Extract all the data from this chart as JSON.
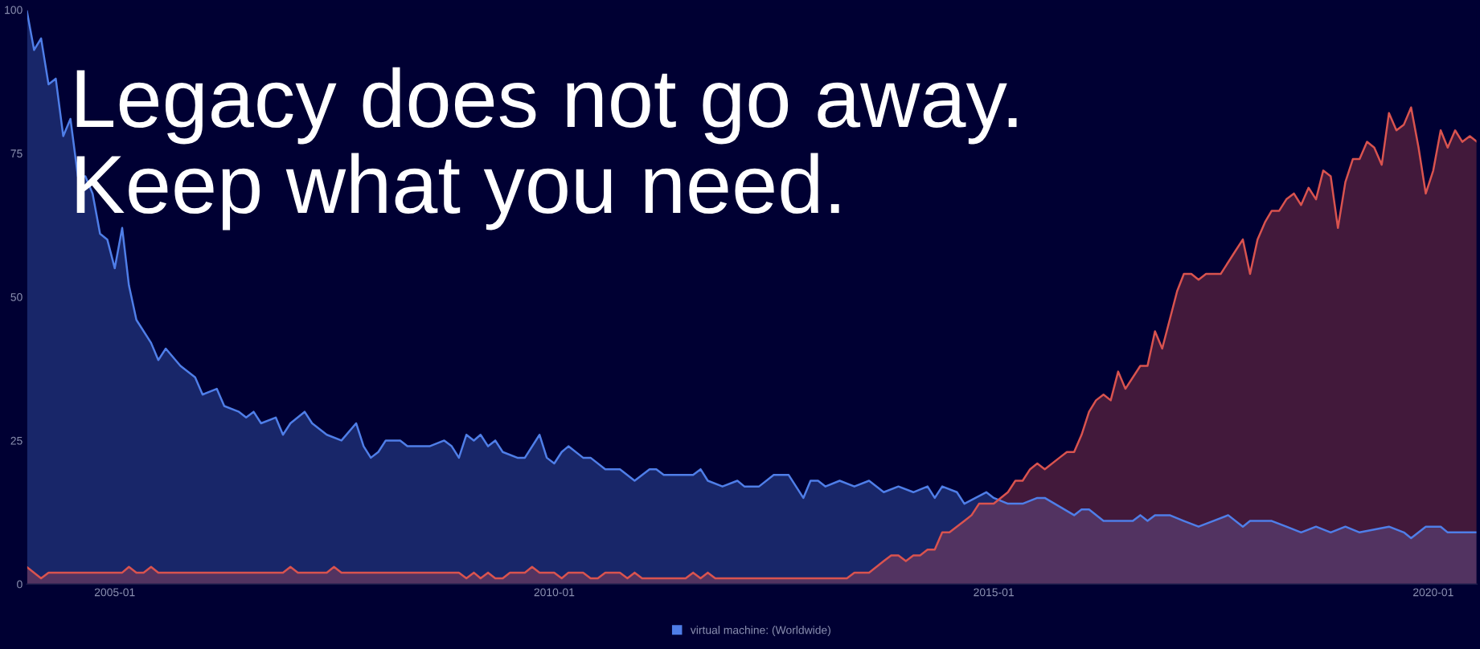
{
  "chart_data": {
    "type": "area",
    "title": "Legacy does not go away.\nKeep what you need.",
    "xlim": [
      "2004-01",
      "2020-07"
    ],
    "xticks": [
      "2005-01",
      "2010-01",
      "2015-01",
      "2020-01"
    ],
    "ylim": [
      0,
      100
    ],
    "yticks": [
      0,
      25,
      50,
      75,
      100
    ],
    "grid": false,
    "legend": "bottom",
    "series": [
      {
        "name": "virtual machine: (Worldwide)",
        "color": "#4f7ee8",
        "x": [
          "2004-01",
          "2004-02",
          "2004-03",
          "2004-04",
          "2004-05",
          "2004-06",
          "2004-07",
          "2004-08",
          "2004-09",
          "2004-10",
          "2004-11",
          "2004-12",
          "2005-01",
          "2005-02",
          "2005-03",
          "2005-04",
          "2005-06",
          "2005-07",
          "2005-08",
          "2005-10",
          "2005-12",
          "2006-01",
          "2006-03",
          "2006-04",
          "2006-06",
          "2006-07",
          "2006-08",
          "2006-09",
          "2006-11",
          "2006-12",
          "2007-01",
          "2007-03",
          "2007-04",
          "2007-06",
          "2007-08",
          "2007-10",
          "2007-11",
          "2007-12",
          "2008-01",
          "2008-02",
          "2008-04",
          "2008-05",
          "2008-08",
          "2008-10",
          "2008-11",
          "2008-12",
          "2009-01",
          "2009-02",
          "2009-03",
          "2009-04",
          "2009-05",
          "2009-06",
          "2009-08",
          "2009-09",
          "2009-11",
          "2009-12",
          "2010-01",
          "2010-02",
          "2010-03",
          "2010-05",
          "2010-06",
          "2010-08",
          "2010-10",
          "2010-12",
          "2011-02",
          "2011-03",
          "2011-04",
          "2011-08",
          "2011-09",
          "2011-10",
          "2011-12",
          "2012-02",
          "2012-03",
          "2012-05",
          "2012-07",
          "2012-09",
          "2012-11",
          "2012-12",
          "2013-01",
          "2013-02",
          "2013-04",
          "2013-06",
          "2013-08",
          "2013-10",
          "2013-12",
          "2014-02",
          "2014-04",
          "2014-05",
          "2014-06",
          "2014-08",
          "2014-09",
          "2014-12",
          "2015-01",
          "2015-03",
          "2015-05",
          "2015-07",
          "2015-08",
          "2015-12",
          "2016-01",
          "2016-02",
          "2016-04",
          "2016-08",
          "2016-09",
          "2016-10",
          "2016-11",
          "2017-01",
          "2017-03",
          "2017-05",
          "2017-07",
          "2017-09",
          "2017-11",
          "2017-12",
          "2018-03",
          "2018-05",
          "2018-07",
          "2018-09",
          "2018-11",
          "2019-01",
          "2019-03",
          "2019-07",
          "2019-09",
          "2019-10",
          "2019-12",
          "2020-02",
          "2020-03",
          "2020-07"
        ],
        "values": [
          100,
          93,
          95,
          87,
          88,
          78,
          81,
          71,
          71,
          68,
          61,
          60,
          55,
          62,
          52,
          46,
          42,
          39,
          41,
          38,
          36,
          33,
          34,
          31,
          30,
          29,
          30,
          28,
          29,
          26,
          28,
          30,
          28,
          26,
          25,
          28,
          24,
          22,
          23,
          25,
          25,
          24,
          24,
          25,
          24,
          22,
          26,
          25,
          26,
          24,
          25,
          23,
          22,
          22,
          26,
          22,
          21,
          23,
          24,
          22,
          22,
          20,
          20,
          18,
          20,
          20,
          19,
          19,
          20,
          18,
          17,
          18,
          17,
          17,
          19,
          19,
          15,
          18,
          18,
          17,
          18,
          17,
          18,
          16,
          17,
          16,
          17,
          15,
          17,
          16,
          14,
          16,
          15,
          14,
          14,
          15,
          15,
          12,
          13,
          13,
          11,
          11,
          12,
          11,
          12,
          12,
          11,
          10,
          11,
          12,
          10,
          11,
          11,
          10,
          9,
          10,
          9,
          10,
          9,
          10,
          9,
          8,
          10,
          10,
          9,
          9
        ]
      },
      {
        "color": "#d9534f",
        "x": [
          "2004-01",
          "2004-03",
          "2004-04",
          "2005-02",
          "2005-03",
          "2005-04",
          "2005-05",
          "2005-06",
          "2005-07",
          "2006-12",
          "2007-01",
          "2007-02",
          "2007-06",
          "2007-07",
          "2007-08",
          "2008-12",
          "2009-01",
          "2009-02",
          "2009-03",
          "2009-04",
          "2009-05",
          "2009-06",
          "2009-07",
          "2009-09",
          "2009-10",
          "2009-11",
          "2010-01",
          "2010-02",
          "2010-03",
          "2010-05",
          "2010-06",
          "2010-07",
          "2010-08",
          "2010-10",
          "2010-11",
          "2010-12",
          "2011-01",
          "2011-07",
          "2011-08",
          "2011-09",
          "2011-10",
          "2011-11",
          "2013-05",
          "2013-06",
          "2013-08",
          "2013-10",
          "2013-11",
          "2013-12",
          "2014-01",
          "2014-02",
          "2014-03",
          "2014-04",
          "2014-05",
          "2014-06",
          "2014-07",
          "2014-09",
          "2014-10",
          "2014-11",
          "2014-12",
          "2015-01",
          "2015-03",
          "2015-04",
          "2015-05",
          "2015-06",
          "2015-07",
          "2015-08",
          "2015-10",
          "2015-11",
          "2015-12",
          "2016-01",
          "2016-02",
          "2016-03",
          "2016-04",
          "2016-05",
          "2016-06",
          "2016-07",
          "2016-09",
          "2016-10",
          "2016-11",
          "2016-12",
          "2017-01",
          "2017-02",
          "2017-03",
          "2017-04",
          "2017-05",
          "2017-06",
          "2017-08",
          "2017-10",
          "2017-11",
          "2017-12",
          "2018-01",
          "2018-02",
          "2018-03",
          "2018-04",
          "2018-05",
          "2018-06",
          "2018-07",
          "2018-08",
          "2018-09",
          "2018-10",
          "2018-11",
          "2018-12",
          "2019-01",
          "2019-02",
          "2019-03",
          "2019-04",
          "2019-05",
          "2019-06",
          "2019-07",
          "2019-08",
          "2019-09",
          "2019-10",
          "2019-11",
          "2019-12",
          "2020-01",
          "2020-02",
          "2020-03",
          "2020-04",
          "2020-05",
          "2020-06",
          "2020-07"
        ],
        "values": [
          3,
          1,
          2,
          2,
          3,
          2,
          2,
          3,
          2,
          2,
          3,
          2,
          2,
          3,
          2,
          2,
          1,
          2,
          1,
          2,
          1,
          1,
          2,
          2,
          3,
          2,
          2,
          1,
          2,
          2,
          1,
          1,
          2,
          2,
          1,
          2,
          1,
          1,
          2,
          1,
          2,
          1,
          1,
          2,
          2,
          4,
          5,
          5,
          4,
          5,
          5,
          6,
          6,
          9,
          9,
          11,
          12,
          14,
          14,
          14,
          16,
          18,
          18,
          20,
          21,
          20,
          22,
          23,
          23,
          26,
          30,
          32,
          33,
          32,
          37,
          34,
          38,
          38,
          44,
          41,
          46,
          51,
          54,
          54,
          53,
          54,
          54,
          58,
          60,
          54,
          60,
          63,
          65,
          65,
          67,
          68,
          66,
          69,
          67,
          72,
          71,
          62,
          70,
          74,
          74,
          77,
          76,
          73,
          82,
          79,
          80,
          83,
          76,
          68,
          72,
          79,
          76,
          79,
          77,
          78,
          77
        ]
      }
    ]
  }
}
